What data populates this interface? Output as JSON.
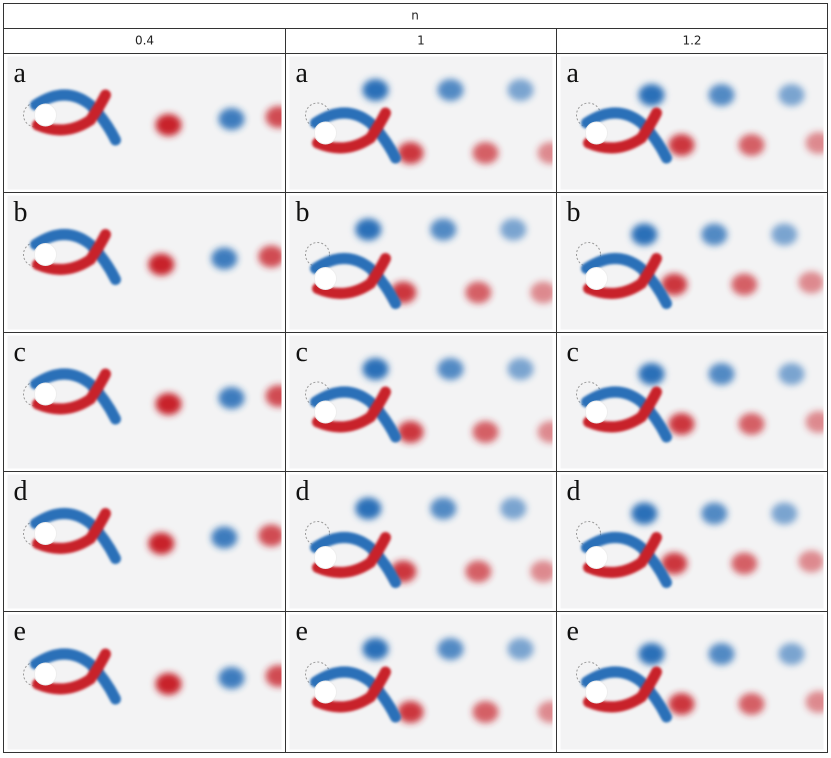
{
  "table": {
    "header": "n",
    "columns": [
      "0.4",
      "1",
      "1.2"
    ],
    "rows": [
      {
        "cells": [
          "a",
          "a",
          "a"
        ]
      },
      {
        "cells": [
          "b",
          "b",
          "b"
        ]
      },
      {
        "cells": [
          "c",
          "c",
          "c"
        ]
      },
      {
        "cells": [
          "d",
          "d",
          "d"
        ]
      },
      {
        "cells": [
          "e",
          "e",
          "e"
        ]
      }
    ]
  }
}
